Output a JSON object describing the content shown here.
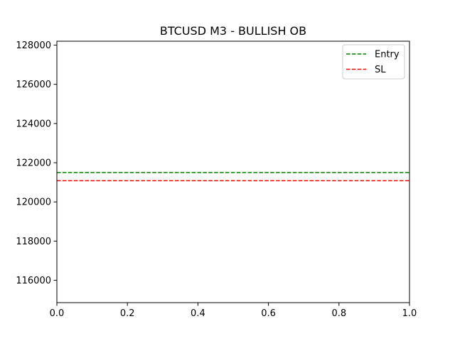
{
  "chart_data": {
    "type": "line",
    "title": "BTCUSD M3 - BULLISH OB",
    "xlabel": "",
    "ylabel": "",
    "xlim": [
      0.0,
      1.0
    ],
    "ylim": [
      114860,
      128200
    ],
    "x_ticks": [
      "0.0",
      "0.2",
      "0.4",
      "0.6",
      "0.8",
      "1.0"
    ],
    "x_tick_values": [
      0.0,
      0.2,
      0.4,
      0.6,
      0.8,
      1.0
    ],
    "y_ticks": [
      "116000",
      "118000",
      "120000",
      "122000",
      "124000",
      "126000",
      "128000"
    ],
    "y_tick_values": [
      116000,
      118000,
      120000,
      122000,
      124000,
      126000,
      128000
    ],
    "grid": false,
    "legend_position": "top-right",
    "series": [
      {
        "name": "Entry",
        "style": "dashed",
        "color": "#008000",
        "x": [
          0.0,
          1.0
        ],
        "y": [
          121500,
          121500
        ]
      },
      {
        "name": "SL",
        "style": "dashed",
        "color": "#ff0000",
        "x": [
          0.0,
          1.0
        ],
        "y": [
          121080,
          121080
        ]
      }
    ]
  }
}
